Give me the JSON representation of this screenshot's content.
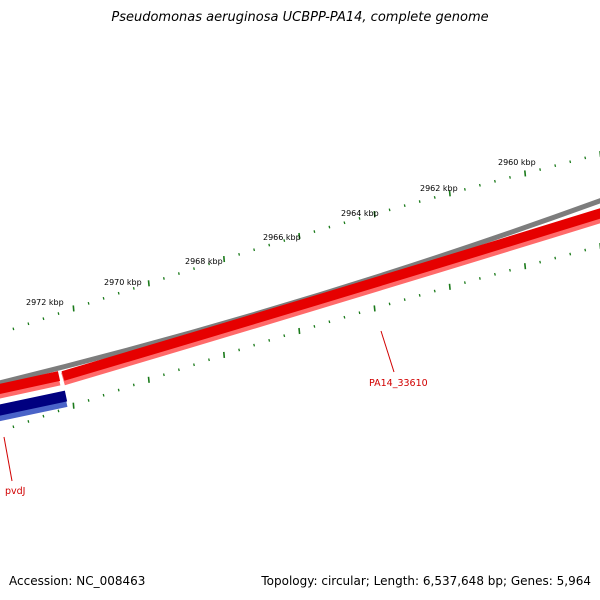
{
  "title": "Pseudomonas aeruginosa UCBPP-PA14, complete genome",
  "accession_text": "Accession: NC_008463",
  "summary_text": "Topology: circular; Length: 6,537,648 bp; Genes: 5,964",
  "colors": {
    "backbone": "#7d7d7d",
    "forward_gene": "#e60000",
    "forward_gene_shadow": "#ff6a6a",
    "reverse_gene": "#000080",
    "reverse_gene_shadow": "#4a63c8",
    "ticks": "#1a7a1a",
    "label_line": "#d10000",
    "label_text": "#d10000"
  },
  "kbp_labels": [
    {
      "text": "2960 kbp"
    },
    {
      "text": "2962 kbp"
    },
    {
      "text": "2964 kbp"
    },
    {
      "text": "2966 kbp"
    },
    {
      "text": "2968 kbp"
    },
    {
      "text": "2970 kbp"
    },
    {
      "text": "2972 kbp"
    }
  ],
  "genes": [
    {
      "name": "PA14_33610",
      "strand": "forward"
    },
    {
      "name": "pvdJ",
      "strand": "reverse"
    }
  ]
}
